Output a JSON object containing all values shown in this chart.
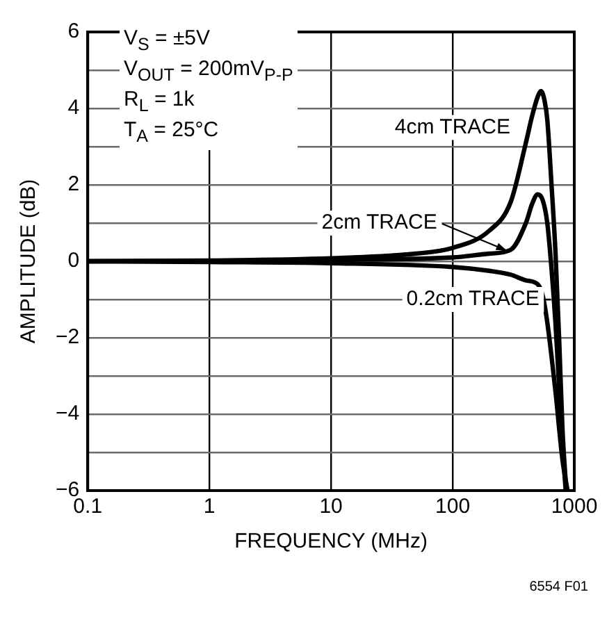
{
  "chart_data": {
    "type": "line",
    "xlabel": "FREQUENCY (MHz)",
    "ylabel": "AMPLITUDE (dB)",
    "series": [
      {
        "name": "4cm TRACE",
        "color": "#000000",
        "x": [
          0.1,
          1,
          10,
          50,
          100,
          200,
          300,
          400,
          450,
          500,
          533,
          570,
          600,
          650,
          700,
          750,
          800,
          860
        ],
        "values": [
          0,
          0.02,
          0.08,
          0.2,
          0.35,
          0.8,
          1.55,
          3.1,
          3.8,
          4.3,
          4.45,
          4.2,
          3.7,
          2.0,
          0.25,
          -2.0,
          -4.4,
          -6
        ]
      },
      {
        "name": "2cm TRACE",
        "color": "#000000",
        "x": [
          0.1,
          1,
          10,
          100,
          200,
          300,
          400,
          450,
          500,
          550,
          600,
          650,
          700,
          800,
          850
        ],
        "values": [
          0,
          0.01,
          0.04,
          0.1,
          0.2,
          0.3,
          1.0,
          1.5,
          1.75,
          1.6,
          1.0,
          -0.2,
          -1.6,
          -4.8,
          -6
        ]
      },
      {
        "name": "0.2cm TRACE",
        "color": "#000000",
        "x": [
          0.1,
          1,
          10,
          100,
          200,
          300,
          400,
          500,
          550,
          600,
          700,
          800,
          880
        ],
        "values": [
          0,
          -0.02,
          -0.05,
          -0.15,
          -0.25,
          -0.35,
          -0.5,
          -0.6,
          -0.9,
          -1.6,
          -3.4,
          -5.2,
          -6
        ]
      }
    ],
    "xlim": [
      0.1,
      1000
    ],
    "xticks": [
      0.1,
      1,
      10,
      100,
      1000
    ],
    "ylim": [
      -6,
      6
    ],
    "yticks": [
      -6,
      {
        "value": -5,
        "label": null
      },
      -4,
      {
        "value": -3,
        "label": null
      },
      -2,
      {
        "value": -1,
        "label": null
      },
      0,
      {
        "value": 1,
        "label": null
      },
      2,
      {
        "value": 3,
        "label": null
      },
      4,
      {
        "value": 5,
        "label": null
      },
      6
    ],
    "log": "x",
    "grid": true,
    "legend": "right",
    "marker": "none",
    "line_style": "solid",
    "annotations": [
      "V$_{S}$ = ±5V",
      "V$_{OUT}$ = 200mV$_{P-P}$",
      "R$_{L}$ = 1k",
      "T$_{A}$ = 25°C",
      "6554 F01"
    ]
  }
}
